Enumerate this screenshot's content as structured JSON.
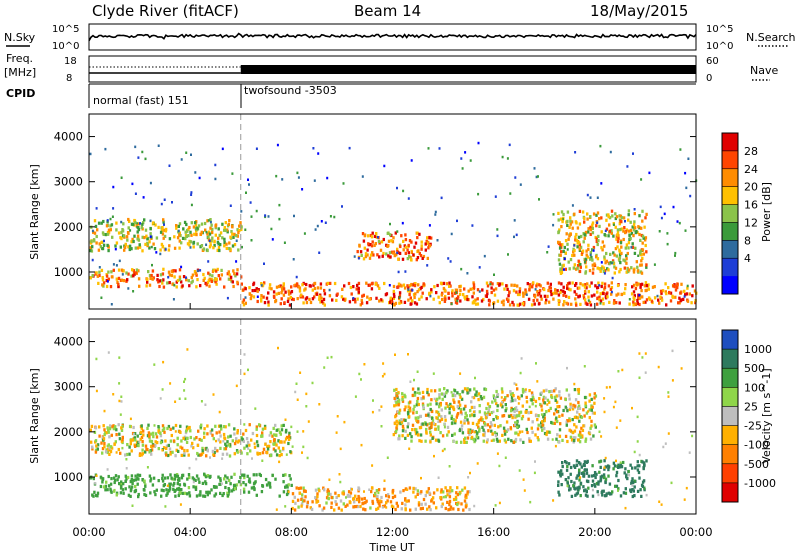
{
  "header": {
    "station": "Clyde River (fitACF)",
    "beam": "Beam 14",
    "date": "18/May/2015"
  },
  "strip": {
    "nsky_label": "N.Sky",
    "nsky_ticks": [
      "10^5",
      "10^0"
    ],
    "nsearch_label": "N.Search",
    "nsearch_ticks": [
      "10^5",
      "10^0"
    ],
    "freq_label": "Freq.",
    "freq_unit": "[MHz]",
    "freq_ticks": [
      "18",
      "8"
    ],
    "nave_label": "Nave",
    "nave_ticks": [
      "60",
      "0"
    ],
    "cpid_label": "CPID",
    "cpid_segments": [
      {
        "name": "normal (fast) 151",
        "start_hour": 0,
        "end_hour": 6
      },
      {
        "name": "twofsound -3503",
        "start_hour": 6,
        "end_hour": 24
      }
    ]
  },
  "axes": {
    "xlabel": "Time UT",
    "x_ticks": [
      "00:00",
      "04:00",
      "08:00",
      "12:00",
      "16:00",
      "20:00",
      "00:00"
    ],
    "ylabel": "Slant Range [km]",
    "y_ticks": [
      "4000",
      "3000",
      "2000",
      "1000"
    ]
  },
  "colors": {
    "scale": [
      "#0000ff",
      "#2050d0",
      "#2e7a3e",
      "#3a9a3a",
      "#6fcf2f",
      "#ffc000",
      "#ff8c00",
      "#ff4000",
      "#e00000"
    ],
    "velocity_gray": "#bebebe"
  },
  "chart_data": [
    {
      "type": "heatmap",
      "title": "Power",
      "xlabel": "Time UT",
      "ylabel": "Slant Range [km]",
      "xlim": [
        0,
        24
      ],
      "ylim": [
        180,
        4500
      ],
      "colorbar_label": "Power [dB]",
      "colorbar_ticks": [
        "28",
        "24",
        "20",
        "16",
        "12",
        "8",
        "4"
      ],
      "colorbar_colors": [
        "#e00000",
        "#ff4500",
        "#ff8c00",
        "#ffc000",
        "#8bc34a",
        "#3a9a3a",
        "#2e6b9e",
        "#1e3ed6",
        "#0000ff"
      ],
      "regions": [
        {
          "t0": 0.0,
          "t1": 6.0,
          "r0": 1500,
          "r1": 2200,
          "db": 18
        },
        {
          "t0": 0.0,
          "t1": 6.0,
          "r0": 700,
          "r1": 1100,
          "db": 24
        },
        {
          "t0": 6.0,
          "t1": 24.0,
          "r0": 300,
          "r1": 800,
          "db": 26
        },
        {
          "t0": 10.5,
          "t1": 13.5,
          "r0": 1300,
          "r1": 1900,
          "db": 25
        },
        {
          "t0": 18.5,
          "t1": 22.0,
          "r0": 1000,
          "r1": 2400,
          "db": 20
        }
      ]
    },
    {
      "type": "heatmap",
      "title": "Velocity",
      "xlabel": "Time UT",
      "ylabel": "Slant Range [km]",
      "xlim": [
        0,
        24
      ],
      "ylim": [
        180,
        4500
      ],
      "colorbar_label": "Velocity [m s^-1]",
      "colorbar_ticks": [
        "1000",
        "500",
        "100",
        "25",
        "-25",
        "-100",
        "-500",
        "-1000"
      ],
      "colorbar_colors": [
        "#1f4fbf",
        "#2e7a5e",
        "#3fa03f",
        "#8fd64a",
        "#bebebe",
        "#ffb000",
        "#ff8000",
        "#ff4000",
        "#e00000"
      ],
      "regions": [
        {
          "t0": 0.0,
          "t1": 8.0,
          "r0": 1500,
          "r1": 2200,
          "v": 0
        },
        {
          "t0": 0.0,
          "t1": 8.0,
          "r0": 600,
          "r1": 1100,
          "v": 200
        },
        {
          "t0": 8.0,
          "t1": 15.0,
          "r0": 300,
          "r1": 800,
          "v": -100
        },
        {
          "t0": 12.0,
          "t1": 20.0,
          "r0": 1800,
          "r1": 3000,
          "v": 0
        },
        {
          "t0": 18.5,
          "t1": 22.0,
          "r0": 600,
          "r1": 1400,
          "v": 600
        }
      ]
    }
  ]
}
